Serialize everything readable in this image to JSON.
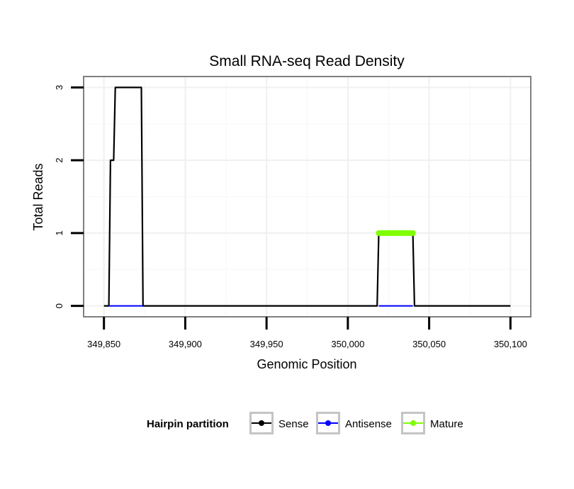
{
  "chart_data": {
    "type": "line",
    "title": "Small RNA-seq Read Density",
    "xlabel": "Genomic Position",
    "ylabel": "Total Reads",
    "xlim": [
      349837.5,
      350112.5
    ],
    "ylim": [
      -0.15,
      3.15
    ],
    "x_ticks": [
      349850,
      349900,
      349950,
      350000,
      350050,
      350100
    ],
    "x_tick_labels": [
      "349,850",
      "349,900",
      "349,950",
      "350,000",
      "350,050",
      "350,100"
    ],
    "y_ticks": [
      0,
      1,
      2,
      3
    ],
    "y_tick_labels": [
      "0",
      "1",
      "2",
      "3"
    ],
    "grid": true,
    "legend_position": "bottom",
    "legend_title": "Hairpin partition",
    "series": [
      {
        "name": "Sense",
        "color": "#000000",
        "x": [
          349850,
          349853,
          349854,
          349855,
          349856,
          349857,
          349873,
          349874,
          350018,
          350019,
          350040,
          350041,
          350100
        ],
        "y": [
          0,
          0,
          2,
          2,
          2,
          3,
          3,
          0,
          0,
          1,
          1,
          0,
          0
        ]
      },
      {
        "name": "Antisense",
        "color": "#0000ff",
        "x": [
          349853,
          349874,
          350019,
          350040
        ],
        "y": [
          0,
          0,
          0,
          0
        ],
        "segments": [
          [
            349853,
            349874
          ],
          [
            350019,
            350040
          ]
        ]
      },
      {
        "name": "Mature",
        "color": "#7fff00",
        "x": [
          350019,
          350040
        ],
        "y": [
          1,
          1
        ]
      }
    ]
  }
}
